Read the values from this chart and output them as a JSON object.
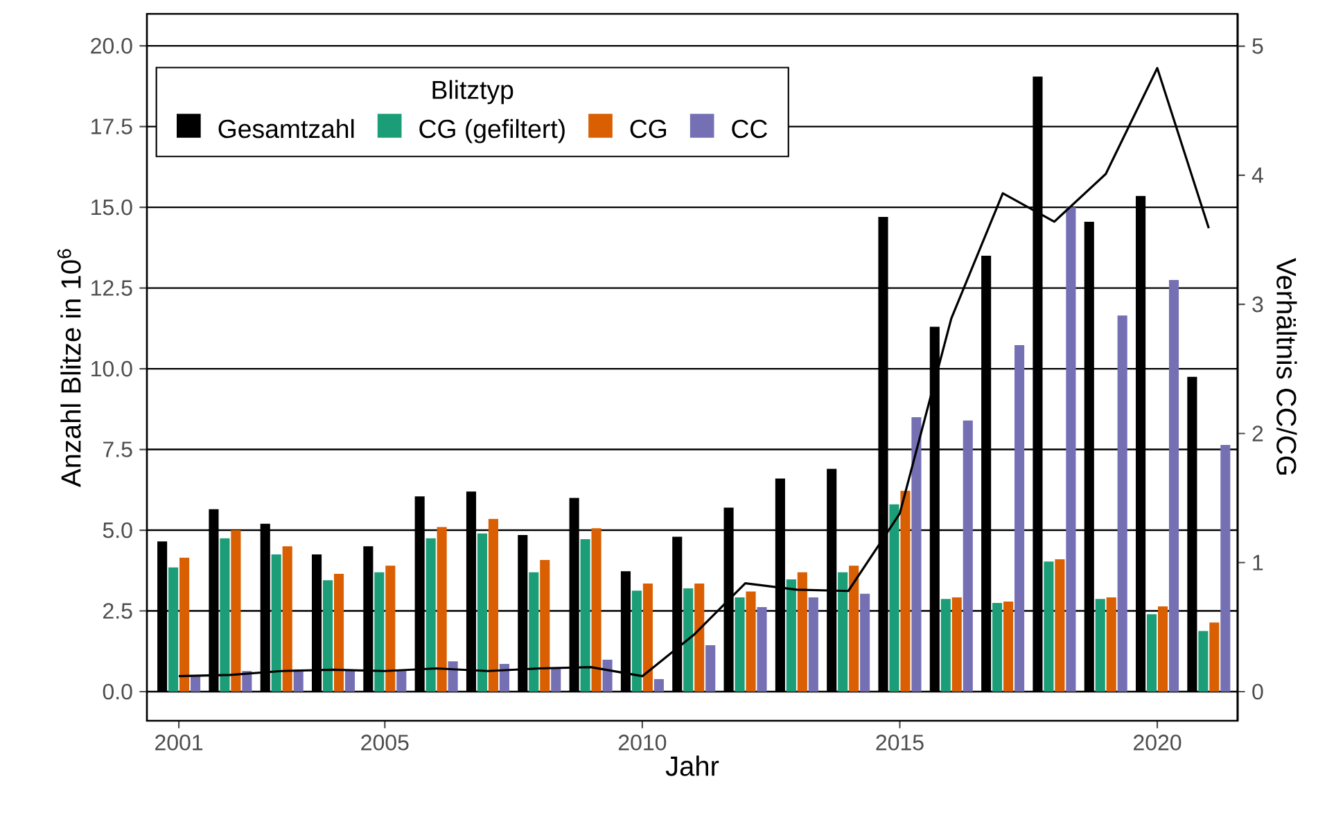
{
  "chart_data": {
    "type": "bar",
    "xlabel": "Jahr",
    "ylabel": "Anzahl Blitze in 10$^{6}$",
    "y2label": "Verhältnis CC/CG",
    "legend_title": "Blitztyp",
    "legend": "top left",
    "grid": "y",
    "x": [
      2001,
      2002,
      2003,
      2004,
      2005,
      2006,
      2007,
      2008,
      2009,
      2010,
      2011,
      2012,
      2013,
      2014,
      2015,
      2016,
      2017,
      2018,
      2019,
      2020,
      2021
    ],
    "xlim": [
      2000.38,
      2021.56
    ],
    "xticks": [
      2001,
      2005,
      2010,
      2015,
      2020
    ],
    "ylim": [
      -0.9,
      20.99
    ],
    "yticks": [
      {
        "value": 0,
        "label": "0.0"
      },
      {
        "value": 2.5,
        "label": "2.5"
      },
      {
        "value": 5,
        "label": "5.0"
      },
      {
        "value": 7.5,
        "label": "7.5"
      },
      {
        "value": 10,
        "label": "10.0"
      },
      {
        "value": 12.5,
        "label": "12.5"
      },
      {
        "value": 15,
        "label": "15.0"
      },
      {
        "value": 17.5,
        "label": "17.5"
      },
      {
        "value": 20,
        "label": "20.0"
      }
    ],
    "y2lim": [
      -0.225,
      5.25
    ],
    "y2ticks": [
      0,
      1,
      2,
      3,
      4,
      5
    ],
    "series": [
      {
        "name": "Gesamtzahl",
        "color": "#000000",
        "values": [
          4.65,
          5.65,
          5.2,
          4.25,
          4.5,
          6.05,
          6.2,
          4.85,
          6.0,
          3.73,
          4.8,
          5.7,
          6.6,
          6.9,
          14.7,
          11.3,
          13.5,
          19.05,
          14.55,
          15.35,
          9.75
        ]
      },
      {
        "name": "CG (gefiltert)",
        "color": "#1b9e77",
        "values": [
          3.85,
          4.75,
          4.25,
          3.45,
          3.7,
          4.75,
          4.9,
          3.7,
          4.72,
          3.13,
          3.2,
          2.92,
          3.48,
          3.7,
          5.8,
          2.87,
          2.75,
          4.03,
          2.87,
          2.4,
          1.88
        ]
      },
      {
        "name": "CG",
        "color": "#d95f02",
        "values": [
          4.15,
          5.0,
          4.5,
          3.65,
          3.9,
          5.1,
          5.35,
          4.08,
          5.06,
          3.35,
          3.35,
          3.1,
          3.7,
          3.9,
          6.22,
          2.92,
          2.79,
          4.1,
          2.92,
          2.64,
          2.14
        ]
      },
      {
        "name": "CC",
        "color": "#7570b3",
        "values": [
          0.47,
          0.64,
          0.69,
          0.65,
          0.65,
          0.94,
          0.86,
          0.73,
          0.99,
          0.39,
          1.44,
          2.62,
          2.92,
          3.03,
          8.5,
          8.4,
          10.73,
          15.0,
          11.65,
          12.75,
          7.64
        ]
      },
      {
        "type": "line",
        "axis": "y2",
        "color": "#000000",
        "values": [
          0.12,
          0.13,
          0.16,
          0.17,
          0.16,
          0.18,
          0.16,
          0.18,
          0.19,
          0.12,
          0.44,
          0.84,
          0.79,
          0.78,
          1.38,
          2.89,
          3.86,
          3.64,
          4.01,
          4.83,
          3.59
        ]
      }
    ]
  }
}
